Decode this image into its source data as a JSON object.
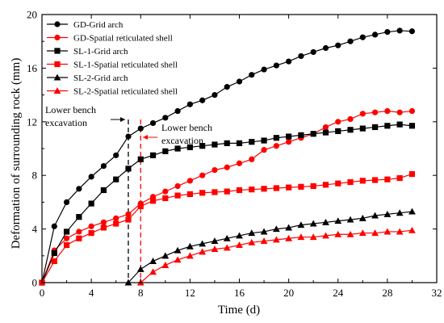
{
  "chart_data": {
    "type": "line",
    "xlabel": "Time (d)",
    "ylabel": "Deformation of surrounding rock (mm)",
    "xlim": [
      0,
      32
    ],
    "ylim": [
      0,
      20
    ],
    "xticks": [
      0,
      4,
      8,
      12,
      16,
      20,
      24,
      28,
      32
    ],
    "yticks": [
      0,
      4,
      8,
      12,
      16,
      20
    ],
    "grid": false,
    "legend_position": "top-left",
    "annotations": [
      {
        "text": [
          "Lower bench",
          "excavation"
        ],
        "x": 7,
        "color": "#000000"
      },
      {
        "text": [
          "Lower bench",
          "excavation"
        ],
        "x": 8,
        "color": "#ff0000"
      }
    ],
    "series": [
      {
        "name": "GD-Grid arch",
        "color": "#000000",
        "marker": "circle",
        "x": [
          0,
          1,
          2,
          3,
          4,
          5,
          6,
          7,
          8,
          9,
          10,
          11,
          12,
          13,
          14,
          15,
          16,
          17,
          18,
          19,
          20,
          21,
          22,
          23,
          24,
          25,
          26,
          27,
          28,
          29,
          30
        ],
        "y": [
          0,
          4.2,
          6.0,
          7.0,
          7.9,
          8.7,
          9.5,
          10.9,
          11.5,
          11.9,
          12.3,
          12.8,
          13.3,
          13.6,
          14.0,
          14.6,
          15.0,
          15.5,
          15.9,
          16.2,
          16.5,
          16.9,
          17.2,
          17.5,
          17.7,
          18.0,
          18.3,
          18.5,
          18.7,
          18.8,
          18.75
        ]
      },
      {
        "name": "GD-Spatial reticulated shell",
        "color": "#ff0000",
        "marker": "circle",
        "x": [
          0,
          1,
          2,
          3,
          4,
          5,
          6,
          7,
          8,
          9,
          10,
          11,
          12,
          13,
          14,
          15,
          16,
          17,
          18,
          19,
          20,
          21,
          22,
          23,
          24,
          25,
          26,
          27,
          28,
          29,
          30
        ],
        "y": [
          0,
          2.4,
          3.3,
          3.8,
          4.2,
          4.5,
          4.8,
          5.1,
          5.9,
          6.4,
          6.8,
          7.2,
          7.6,
          8.0,
          8.4,
          8.6,
          8.9,
          9.2,
          9.9,
          10.2,
          10.5,
          10.8,
          11.1,
          11.6,
          12.0,
          12.2,
          12.6,
          12.7,
          12.8,
          12.7,
          12.8
        ]
      },
      {
        "name": "SL-1-Grid arch",
        "color": "#000000",
        "marker": "square",
        "x": [
          0,
          1,
          2,
          3,
          4,
          5,
          6,
          7,
          8,
          9,
          10,
          11,
          12,
          13,
          14,
          15,
          16,
          17,
          18,
          19,
          20,
          21,
          22,
          23,
          24,
          25,
          26,
          27,
          28,
          29,
          30
        ],
        "y": [
          0,
          2.2,
          3.8,
          4.9,
          5.9,
          6.9,
          7.7,
          8.5,
          9.2,
          9.5,
          9.8,
          10.0,
          10.1,
          10.2,
          10.3,
          10.4,
          10.4,
          10.5,
          10.6,
          10.8,
          10.9,
          11.0,
          11.1,
          11.2,
          11.3,
          11.4,
          11.5,
          11.6,
          11.7,
          11.8,
          11.7
        ]
      },
      {
        "name": "SL-1-Spatial reticulated shell",
        "color": "#ff0000",
        "marker": "square",
        "x": [
          0,
          1,
          2,
          3,
          4,
          5,
          6,
          7,
          8,
          9,
          10,
          11,
          12,
          13,
          14,
          15,
          16,
          17,
          18,
          19,
          20,
          21,
          22,
          23,
          24,
          25,
          26,
          27,
          28,
          29,
          30
        ],
        "y": [
          0,
          1.6,
          2.8,
          3.3,
          3.7,
          4.1,
          4.4,
          4.7,
          5.7,
          6.1,
          6.3,
          6.5,
          6.6,
          6.7,
          6.75,
          6.8,
          6.9,
          6.95,
          7.0,
          7.05,
          7.1,
          7.15,
          7.2,
          7.3,
          7.4,
          7.5,
          7.6,
          7.65,
          7.7,
          7.8,
          8.1
        ]
      },
      {
        "name": "SL-2-Grid arch",
        "color": "#000000",
        "marker": "triangle",
        "x": [
          7,
          8,
          9,
          10,
          11,
          12,
          13,
          14,
          15,
          16,
          17,
          18,
          19,
          20,
          21,
          22,
          23,
          24,
          25,
          26,
          27,
          28,
          29,
          30
        ],
        "y": [
          0,
          1.0,
          1.6,
          2.0,
          2.4,
          2.7,
          2.9,
          3.1,
          3.3,
          3.5,
          3.7,
          3.8,
          4.0,
          4.1,
          4.3,
          4.4,
          4.5,
          4.6,
          4.7,
          4.8,
          5.0,
          5.1,
          5.2,
          5.3
        ]
      },
      {
        "name": "SL-2-Spatial reticulated shell",
        "color": "#ff0000",
        "marker": "triangle",
        "x": [
          8,
          9,
          10,
          11,
          12,
          13,
          14,
          15,
          16,
          17,
          18,
          19,
          20,
          21,
          22,
          23,
          24,
          25,
          26,
          27,
          28,
          29,
          30
        ],
        "y": [
          0,
          0.8,
          1.3,
          1.7,
          2.0,
          2.3,
          2.5,
          2.6,
          2.8,
          3.0,
          3.1,
          3.2,
          3.3,
          3.4,
          3.4,
          3.5,
          3.6,
          3.6,
          3.7,
          3.7,
          3.8,
          3.8,
          3.9
        ]
      }
    ]
  }
}
